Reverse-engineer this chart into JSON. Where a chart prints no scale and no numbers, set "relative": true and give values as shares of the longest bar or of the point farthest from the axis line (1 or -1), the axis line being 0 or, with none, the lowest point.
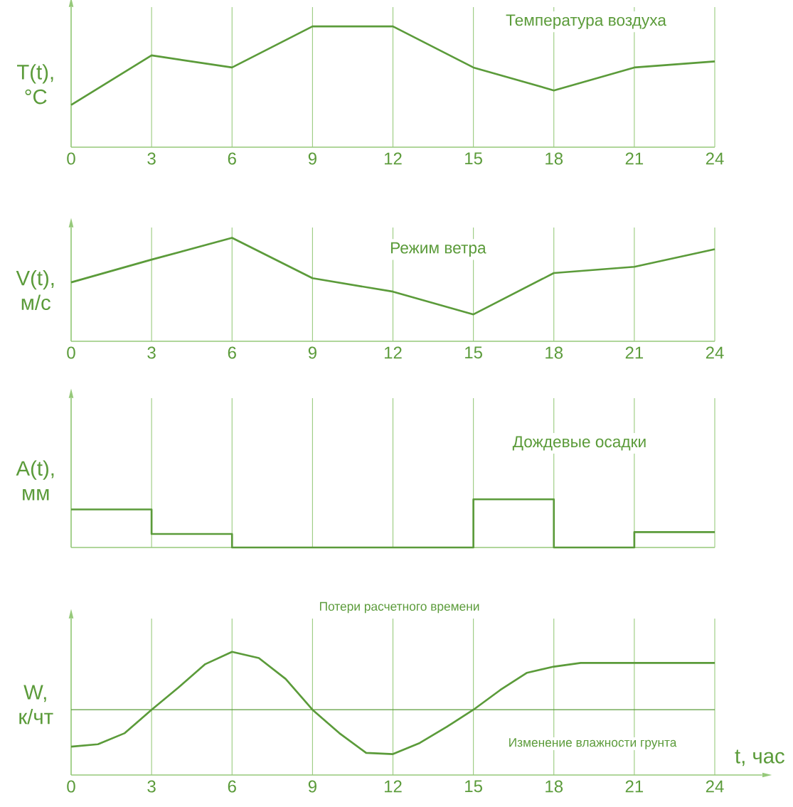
{
  "chart_data": [
    {
      "type": "line",
      "title": "Температура воздуха",
      "ylabel": "T(t), °C",
      "relative": true,
      "color": "#5b9b3a",
      "grid": "x",
      "x": [
        0,
        3,
        6,
        9,
        12,
        15,
        18,
        21,
        24
      ],
      "xlim": [
        0,
        24
      ],
      "xticks": [
        0,
        3,
        6,
        9,
        12,
        15,
        18,
        21,
        24
      ],
      "values": [
        0.35,
        0.76,
        0.66,
        1,
        1,
        0.66,
        0.47,
        0.66,
        0.71
      ]
    },
    {
      "type": "line",
      "title": "Режим ветра",
      "ylabel": "V(t), м/с",
      "relative": true,
      "color": "#5b9b3a",
      "grid": "x",
      "x": [
        0,
        3,
        6,
        9,
        12,
        15,
        18,
        21,
        24
      ],
      "xlim": [
        0,
        24
      ],
      "xticks": [
        0,
        3,
        6,
        9,
        12,
        15,
        18,
        21,
        24
      ],
      "values": [
        0.57,
        0.79,
        1,
        0.61,
        0.48,
        0.26,
        0.66,
        0.72,
        0.89
      ]
    },
    {
      "type": "step",
      "title": "Дождевые осадки",
      "ylabel": "A(t), мм",
      "relative": true,
      "color": "#5b9b3a",
      "grid": "x",
      "x": [
        0,
        3,
        6,
        9,
        12,
        15,
        18,
        21,
        24
      ],
      "xlim": [
        0,
        24
      ],
      "values": [
        0.79,
        0.28,
        0,
        0,
        0,
        1,
        0,
        0.32,
        0.32
      ]
    },
    {
      "type": "line",
      "ylabel": "W, к/чт",
      "xlabel": "t, час",
      "relative": true,
      "color": "#5b9b3a",
      "grid": "x",
      "x": [
        0,
        1,
        2,
        3,
        4,
        5,
        6,
        7,
        8,
        9,
        10,
        11,
        12,
        13,
        14,
        15,
        16,
        17,
        18,
        19,
        20,
        21,
        22,
        23,
        24
      ],
      "xlim": [
        0,
        24
      ],
      "xticks": [
        0,
        3,
        6,
        9,
        12,
        15,
        18,
        21,
        24
      ],
      "values": [
        0.23,
        0.25,
        0.34,
        0.53,
        0.71,
        0.9,
        1,
        0.95,
        0.78,
        0.53,
        0.34,
        0.18,
        0.17,
        0.26,
        0.39,
        0.53,
        0.69,
        0.83,
        0.88,
        0.91,
        0.91,
        0.91,
        0.91,
        0.91,
        0.91
      ],
      "ref_lines": [
        {
          "axis": "y",
          "value": 0.53
        }
      ],
      "annotations": [
        "Потери расчетного времени",
        "Изменение влажности грунта"
      ]
    }
  ]
}
